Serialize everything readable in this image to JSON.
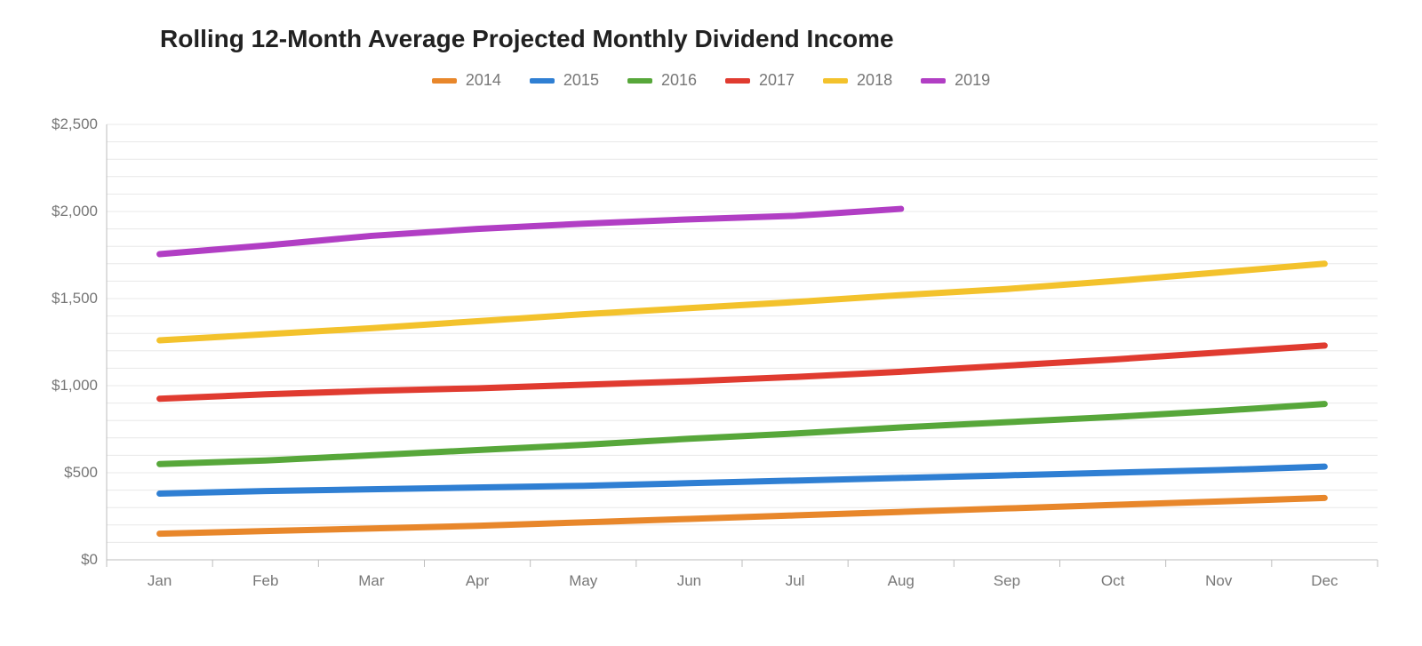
{
  "title": "Rolling 12-Month Average Projected Monthly Dividend Income",
  "title_fontsize": 28,
  "title_color": "#212121",
  "background_color": "#ffffff",
  "grid_color": "#e8e8e8",
  "axis_color": "#bdbdbd",
  "label_color": "#777777",
  "label_fontsize": 17,
  "legend_fontsize": 18,
  "line_width": 7,
  "x_categories": [
    "Jan",
    "Feb",
    "Mar",
    "Apr",
    "May",
    "Jun",
    "Jul",
    "Aug",
    "Sep",
    "Oct",
    "Nov",
    "Dec"
  ],
  "y_axis": {
    "min": 0,
    "max": 2500,
    "tick_step": 500,
    "minor_tick_step": 100,
    "tick_labels": [
      "$0",
      "$500",
      "$1,000",
      "$1,500",
      "$2,000",
      "$2,500"
    ],
    "tick_values": [
      0,
      500,
      1000,
      1500,
      2000,
      2500
    ]
  },
  "series": [
    {
      "name": "2014",
      "color": "#e8872b",
      "values": [
        150,
        165,
        180,
        195,
        215,
        235,
        255,
        275,
        295,
        315,
        335,
        355
      ]
    },
    {
      "name": "2015",
      "color": "#2f7fd3",
      "values": [
        380,
        395,
        405,
        415,
        425,
        440,
        455,
        470,
        485,
        500,
        515,
        535
      ]
    },
    {
      "name": "2016",
      "color": "#57a73a",
      "values": [
        550,
        570,
        600,
        630,
        660,
        695,
        725,
        760,
        790,
        820,
        855,
        895
      ]
    },
    {
      "name": "2017",
      "color": "#e03b30",
      "values": [
        925,
        950,
        970,
        985,
        1005,
        1025,
        1050,
        1080,
        1115,
        1150,
        1190,
        1230
      ]
    },
    {
      "name": "2018",
      "color": "#f3c22c",
      "values": [
        1260,
        1295,
        1330,
        1370,
        1410,
        1445,
        1480,
        1520,
        1555,
        1600,
        1650,
        1700
      ]
    },
    {
      "name": "2019",
      "color": "#b13ec4",
      "values": [
        1755,
        1805,
        1860,
        1900,
        1930,
        1955,
        1975,
        2015
      ]
    }
  ]
}
